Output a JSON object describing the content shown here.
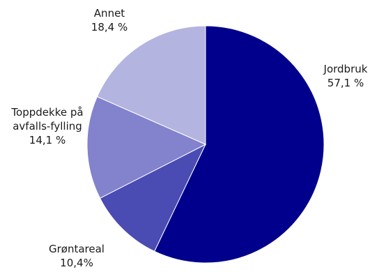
{
  "chart_data": {
    "type": "pie",
    "slices": [
      {
        "name": "Jordbruk",
        "value": 57.1,
        "value_label": "57,1 %",
        "color": "#00008c"
      },
      {
        "name": "Grøntareal",
        "value": 10.4,
        "value_label": "10,4%",
        "color": "#4b4bb4"
      },
      {
        "name": "Toppdekke på avfalls-fylling",
        "name_lines": [
          "Toppdekke på",
          "avfalls-fylling"
        ],
        "value": 14.1,
        "value_label": "14,1 %",
        "color": "#8282cd"
      },
      {
        "name": "Annet",
        "value": 18.4,
        "value_label": "18,4 %",
        "color": "#b4b4e1"
      }
    ],
    "start_angle": "12 o'clock",
    "direction": "clockwise",
    "legend": "none",
    "labels": "outside"
  }
}
